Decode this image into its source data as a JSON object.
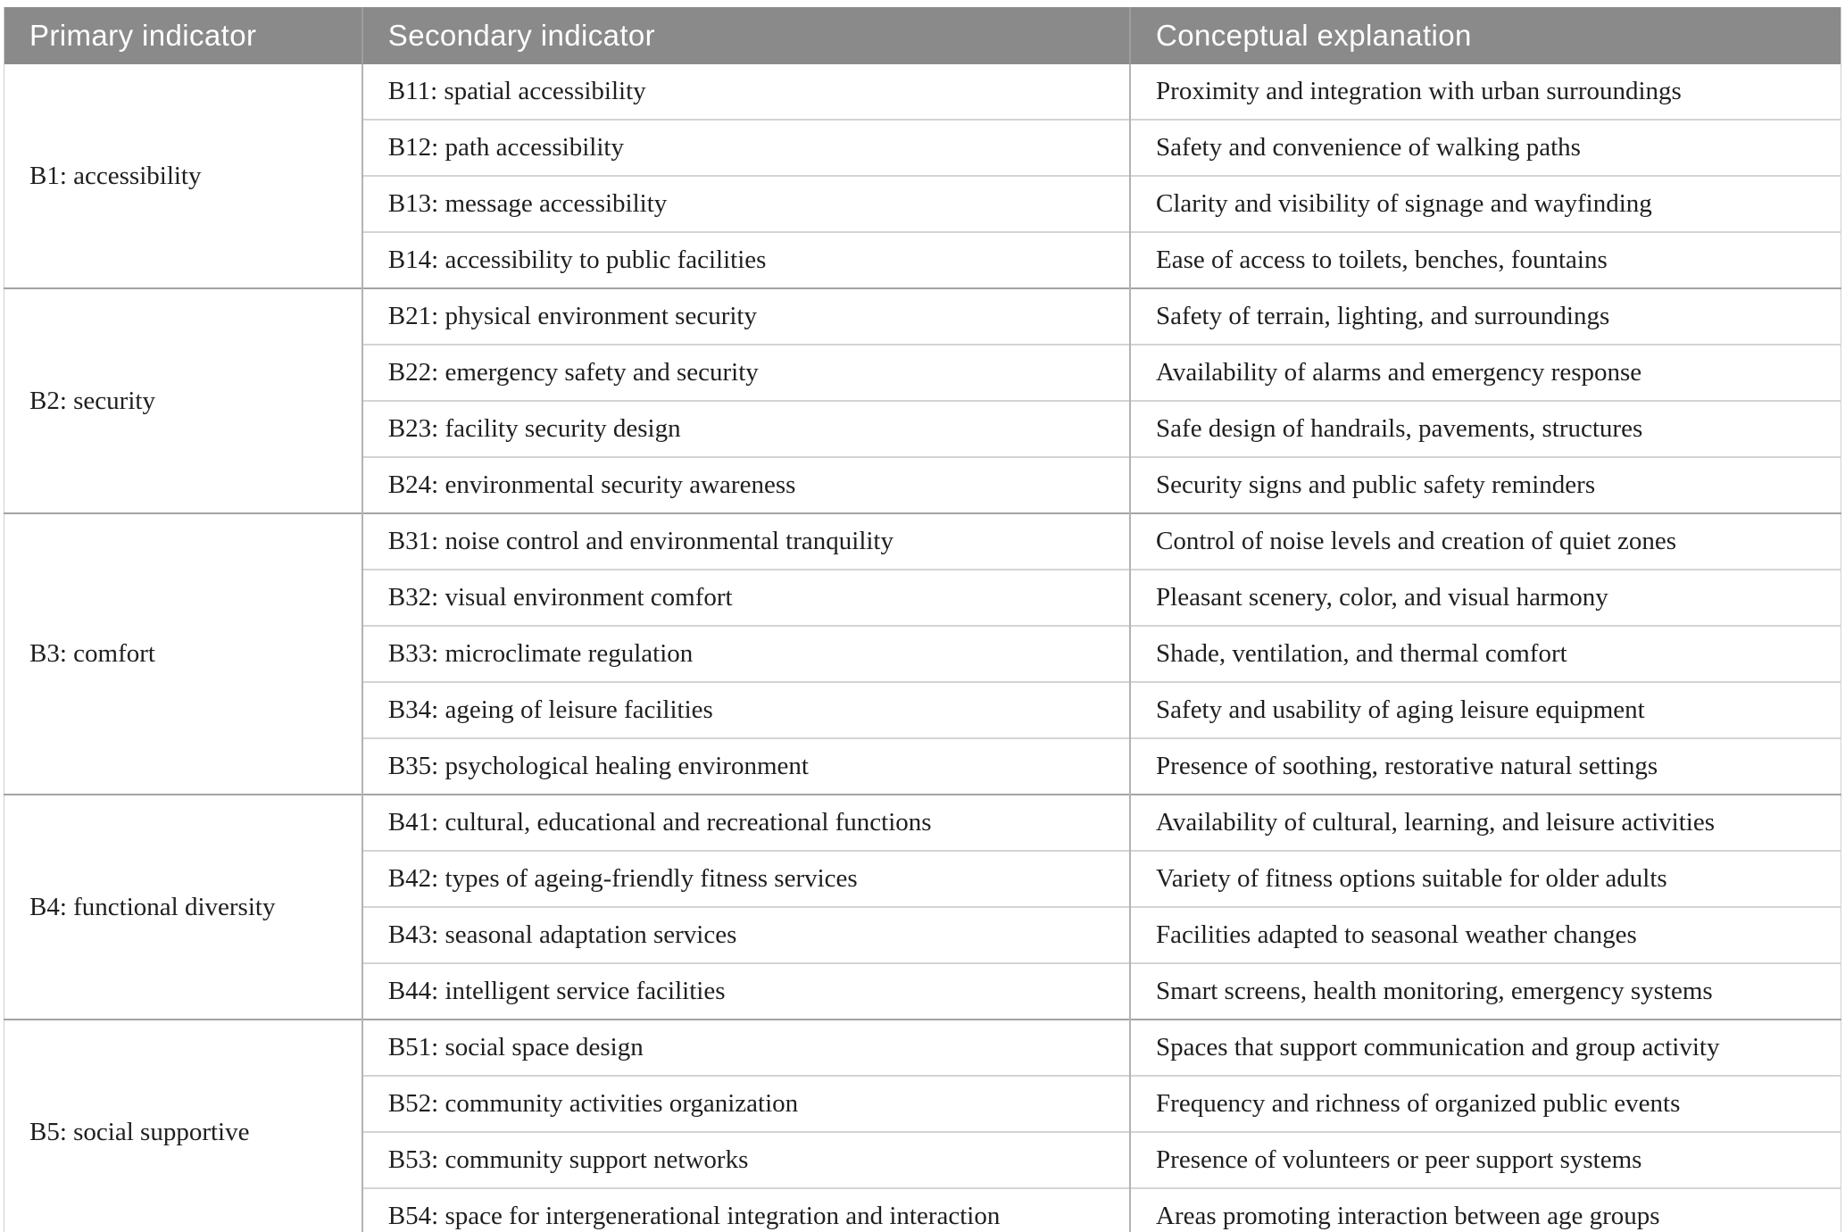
{
  "table": {
    "columns": [
      "Primary indicator",
      "Secondary indicator",
      "Conceptual explanation"
    ],
    "groups": [
      {
        "primary": "B1: accessibility",
        "rows": [
          {
            "secondary": "B11: spatial accessibility",
            "explanation": "Proximity and integration with urban surroundings"
          },
          {
            "secondary": "B12: path accessibility",
            "explanation": "Safety and convenience of walking paths"
          },
          {
            "secondary": "B13: message accessibility",
            "explanation": "Clarity and visibility of signage and wayfinding"
          },
          {
            "secondary": "B14: accessibility to public facilities",
            "explanation": "Ease of access to toilets, benches, fountains"
          }
        ]
      },
      {
        "primary": "B2: security",
        "rows": [
          {
            "secondary": "B21: physical environment security",
            "explanation": "Safety of terrain, lighting, and surroundings"
          },
          {
            "secondary": "B22: emergency safety and security",
            "explanation": "Availability of alarms and emergency response"
          },
          {
            "secondary": "B23: facility security design",
            "explanation": "Safe design of handrails, pavements, structures"
          },
          {
            "secondary": "B24: environmental security awareness",
            "explanation": "Security signs and public safety reminders"
          }
        ]
      },
      {
        "primary": "B3: comfort",
        "rows": [
          {
            "secondary": "B31: noise control and environmental tranquility",
            "explanation": "Control of noise levels and creation of quiet zones"
          },
          {
            "secondary": "B32: visual environment comfort",
            "explanation": "Pleasant scenery, color, and visual harmony"
          },
          {
            "secondary": "B33: microclimate regulation",
            "explanation": "Shade, ventilation, and thermal comfort"
          },
          {
            "secondary": "B34: ageing of leisure facilities",
            "explanation": "Safety and usability of aging leisure equipment"
          },
          {
            "secondary": "B35: psychological healing environment",
            "explanation": "Presence of soothing, restorative natural settings"
          }
        ]
      },
      {
        "primary": "B4: functional diversity",
        "rows": [
          {
            "secondary": "B41: cultural, educational and recreational functions",
            "explanation": "Availability of cultural, learning, and leisure activities"
          },
          {
            "secondary": "B42: types of ageing-friendly fitness services",
            "explanation": "Variety of fitness options suitable for older adults"
          },
          {
            "secondary": "B43: seasonal adaptation services",
            "explanation": "Facilities adapted to seasonal weather changes"
          },
          {
            "secondary": "B44: intelligent service facilities",
            "explanation": "Smart screens, health monitoring, emergency systems"
          }
        ]
      },
      {
        "primary": "B5: social supportive",
        "rows": [
          {
            "secondary": "B51: social space design",
            "explanation": "Spaces that support communication and group activity"
          },
          {
            "secondary": "B52: community activities organization",
            "explanation": "Frequency and richness of organized public events"
          },
          {
            "secondary": "B53: community support networks",
            "explanation": "Presence of volunteers or peer support systems"
          },
          {
            "secondary": "B54: space for intergenerational integration and interaction",
            "explanation": "Areas promoting interaction between age groups"
          }
        ]
      }
    ]
  },
  "colors": {
    "header_bg": "#8a8a8a",
    "header_text": "#ffffff",
    "body_text": "#1f1f1f",
    "row_divider": "#d4d4d4",
    "group_divider": "#a3a3a3",
    "column_divider": "#b3b3b3"
  }
}
